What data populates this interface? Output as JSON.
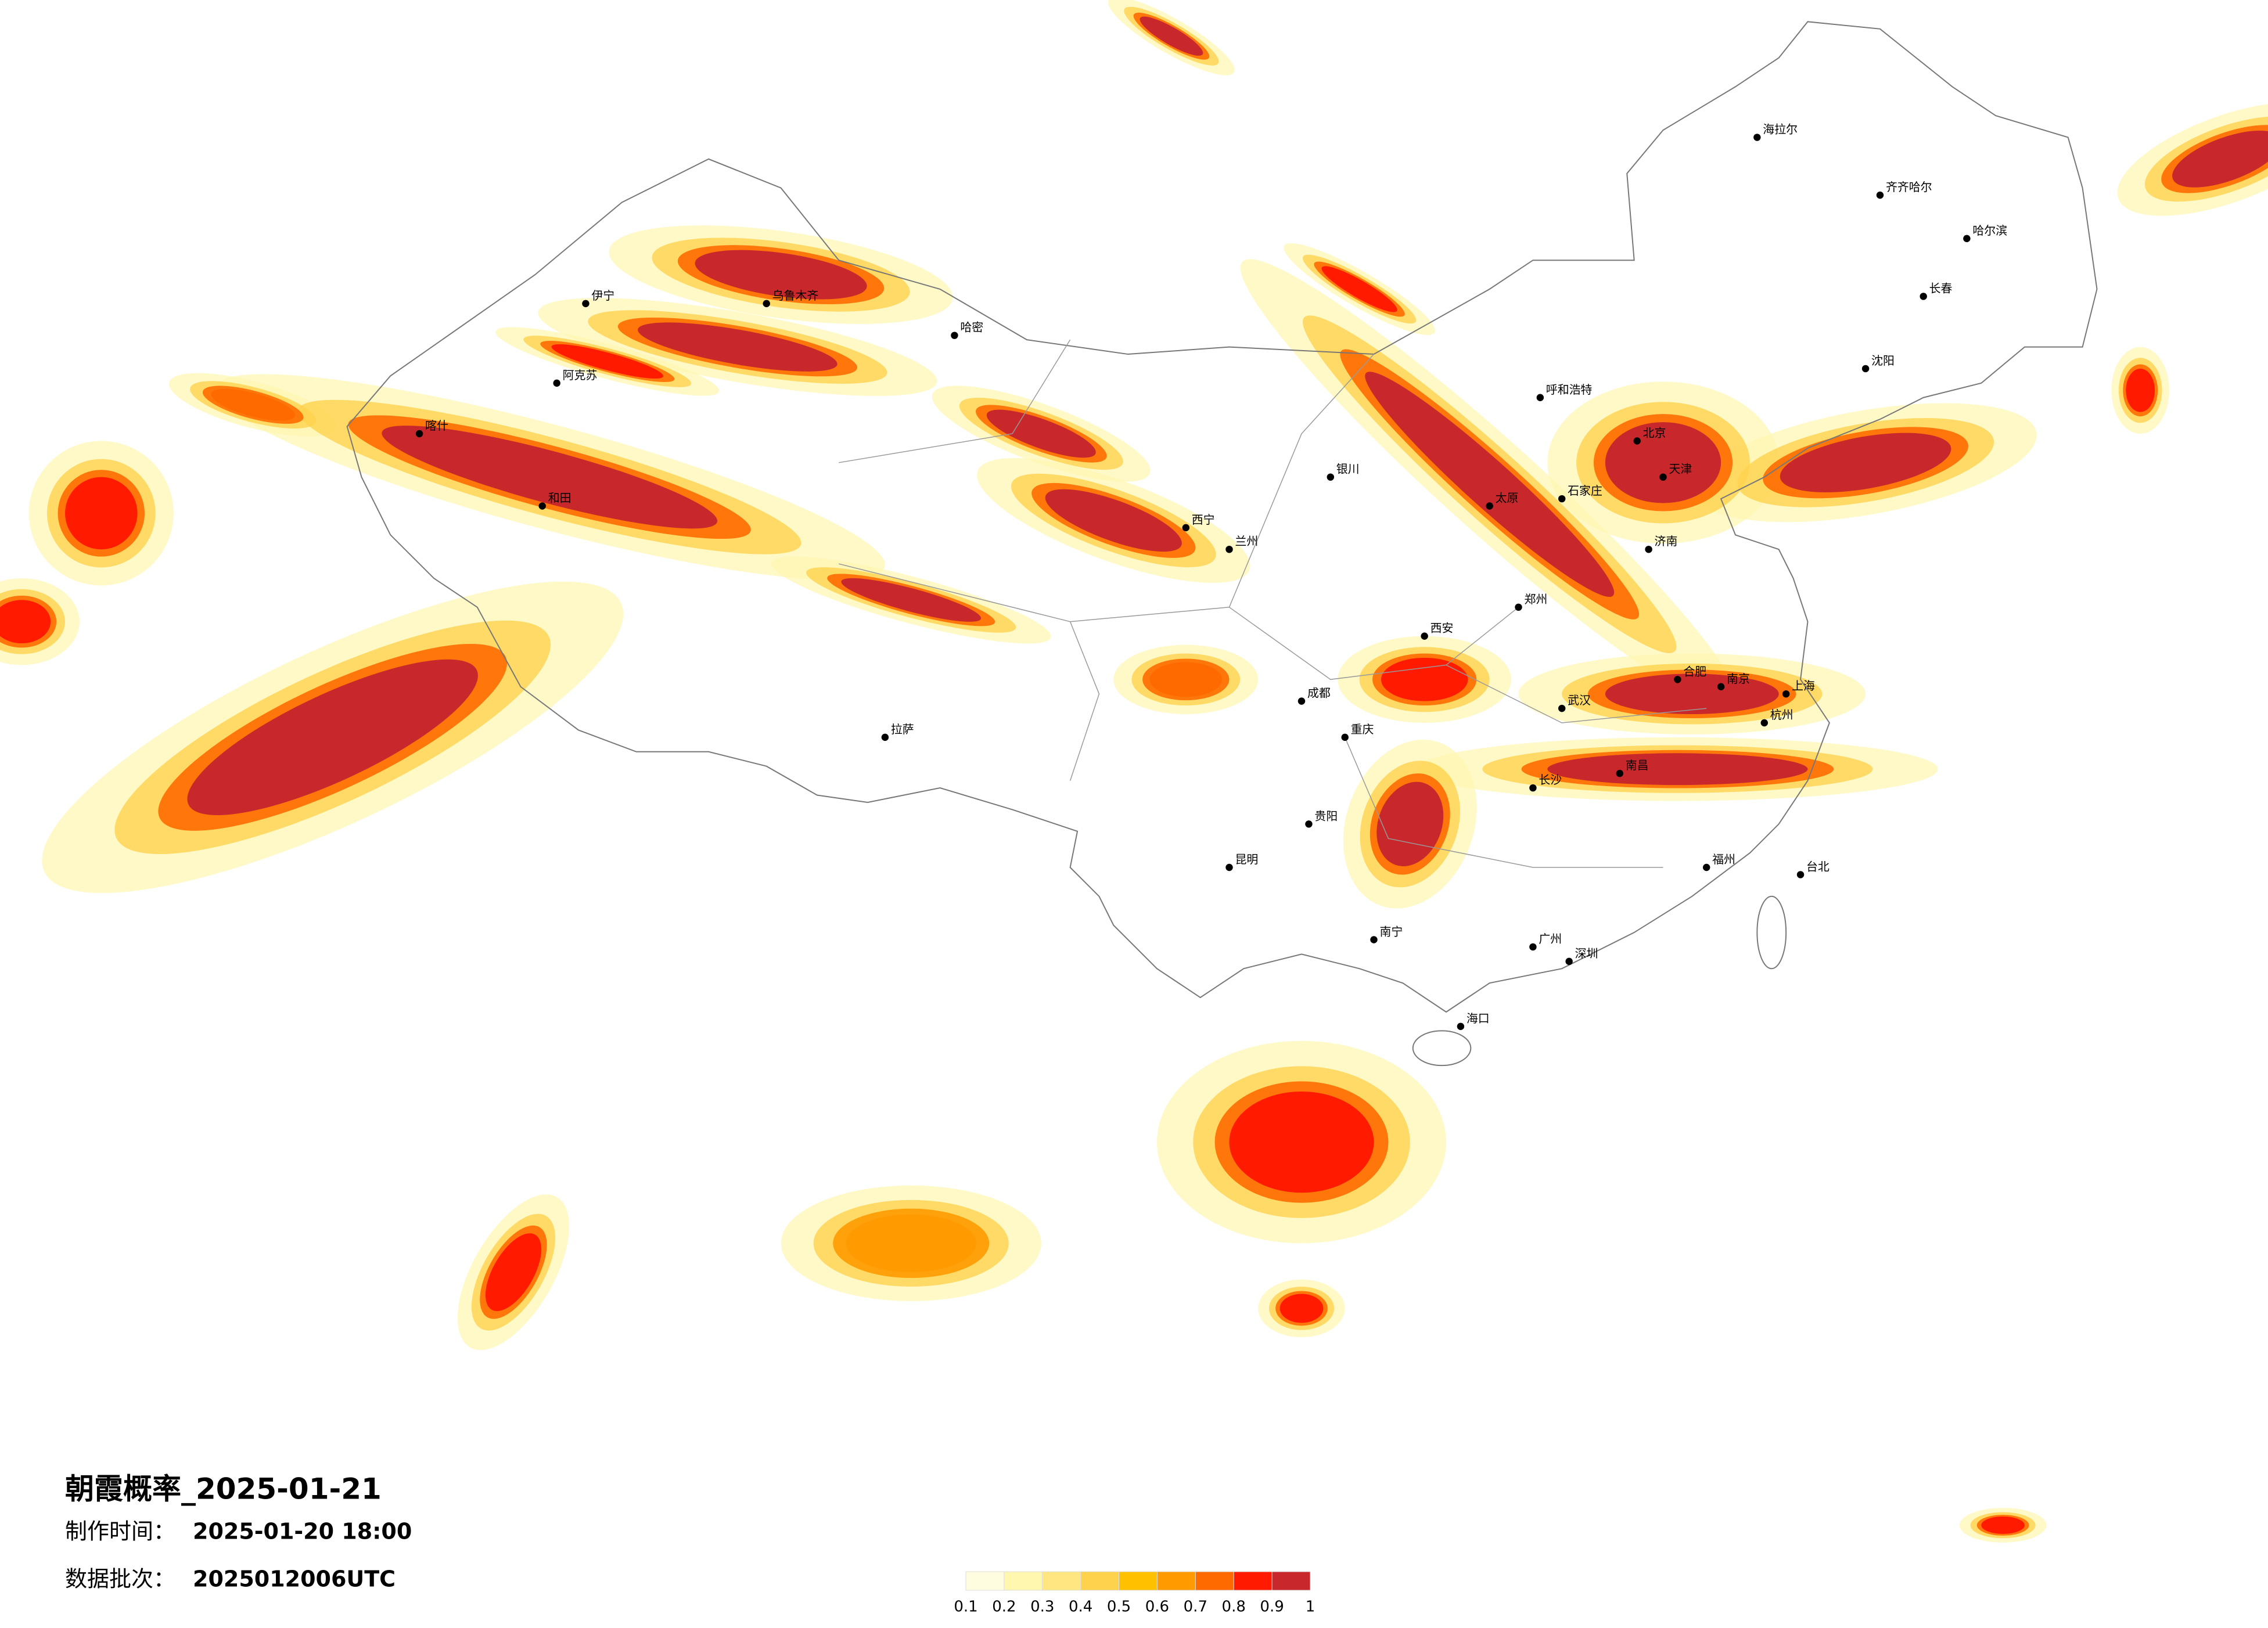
{
  "title": "朝霞概率_2025-01-21",
  "made_label": "制作时间：",
  "made_time": "2025-01-20 18:00",
  "batch_label": "数据批次：",
  "batch": "2025012006UTC",
  "legend": {
    "ticks": [
      0.1,
      0.2,
      0.3,
      0.4,
      0.5,
      0.6,
      0.7,
      0.8,
      0.9,
      1
    ],
    "colors": [
      "#fffde0",
      "#fff6b0",
      "#ffe680",
      "#ffd24d",
      "#ffc000",
      "#ff9a00",
      "#ff6a00",
      "#ff1a00",
      "#c8282c"
    ]
  },
  "cities": [
    "乌鲁木齐",
    "北京",
    "天津",
    "上海",
    "南京",
    "武汉",
    "广州",
    "深圳",
    "成都",
    "重庆",
    "西安",
    "拉萨",
    "昆明",
    "哈尔滨",
    "长春",
    "沈阳",
    "呼和浩特",
    "兰州",
    "西宁",
    "银川",
    "贵阳",
    "南宁",
    "海口",
    "福州",
    "台北",
    "郑州",
    "济南",
    "长沙",
    "南昌",
    "合肥",
    "杭州",
    "太原",
    "石家庄",
    "喀什",
    "伊宁",
    "阿克苏",
    "和田",
    "哈密",
    "齐齐哈尔",
    "海拉尔"
  ]
}
